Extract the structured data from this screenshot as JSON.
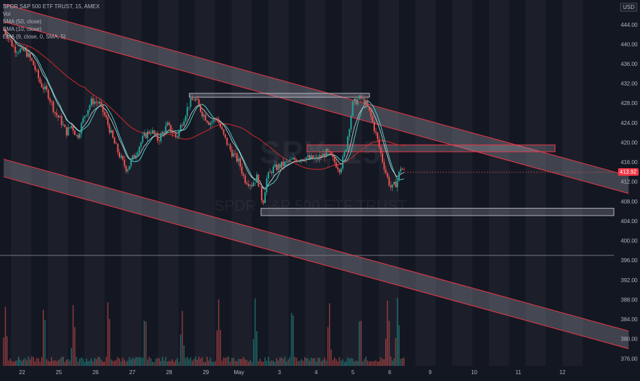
{
  "legend": {
    "title": "SPDR S&P 500 ETF TRUST, 15, AMEX",
    "vol": "Vol",
    "sma50": "SMA (50, close)",
    "sma10": "SMA (10, close)",
    "ema": "EMA (9, close, 0, SMA, 5)"
  },
  "currency_button": "USD",
  "watermark": {
    "symbol": "SPY, 15",
    "name": "SPDR S&P 500 ETF TRUST"
  },
  "last_price": "413.92",
  "colors": {
    "background": "#131722",
    "up": "#26a69a",
    "down": "#ef5350",
    "sma50": "#c62828",
    "sma10": "#4dd0c8",
    "ema": "#e0e0e0",
    "channel_fill": "#787b86",
    "channel_line": "#f23645",
    "zone_line": "#b2b5be"
  },
  "chart_data": {
    "type": "candlestick",
    "y_axis": {
      "ticks": [
        376,
        380,
        384,
        388,
        392,
        396,
        400,
        404,
        408,
        412,
        416,
        420,
        424,
        428,
        432,
        436,
        440,
        444
      ],
      "ylim": [
        374.5,
        449
      ]
    },
    "x_axis": {
      "ticks": [
        {
          "label": "22",
          "t": 0.5
        },
        {
          "label": "25",
          "t": 1.5
        },
        {
          "label": "26",
          "t": 2.5
        },
        {
          "label": "27",
          "t": 3.5
        },
        {
          "label": "28",
          "t": 4.5
        },
        {
          "label": "29",
          "t": 5.5
        },
        {
          "label": "May",
          "t": 6.4
        },
        {
          "label": "3",
          "t": 7.5
        },
        {
          "label": "4",
          "t": 8.5
        },
        {
          "label": "5",
          "t": 9.5
        },
        {
          "label": "6",
          "t": 10.5
        },
        {
          "label": "9",
          "t": 11.6
        },
        {
          "label": "10",
          "t": 12.8
        },
        {
          "label": "11",
          "t": 14.0
        },
        {
          "label": "12",
          "t": 15.2
        }
      ],
      "xlim": [
        -0.1,
        16.6
      ]
    },
    "price_path": [
      [
        0.0,
        443.0
      ],
      [
        0.3,
        439.0
      ],
      [
        0.6,
        438.5
      ],
      [
        0.8,
        436.0
      ],
      [
        1.0,
        432.0
      ],
      [
        1.2,
        430.0
      ],
      [
        1.4,
        426.0
      ],
      [
        1.55,
        424.5
      ],
      [
        1.7,
        422.0
      ],
      [
        1.85,
        423.5
      ],
      [
        2.0,
        421.0
      ],
      [
        2.2,
        425.5
      ],
      [
        2.4,
        428.5
      ],
      [
        2.6,
        428.0
      ],
      [
        2.8,
        424.5
      ],
      [
        3.0,
        420.0
      ],
      [
        3.2,
        416.5
      ],
      [
        3.35,
        414.5
      ],
      [
        3.6,
        418.0
      ],
      [
        3.8,
        421.0
      ],
      [
        4.0,
        422.5
      ],
      [
        4.2,
        420.5
      ],
      [
        4.45,
        423.5
      ],
      [
        4.7,
        421.0
      ],
      [
        4.9,
        425.0
      ],
      [
        5.05,
        428.0
      ],
      [
        5.2,
        429.0
      ],
      [
        5.4,
        426.0
      ],
      [
        5.6,
        424.0
      ],
      [
        5.8,
        425.0
      ],
      [
        6.0,
        421.0
      ],
      [
        6.2,
        418.0
      ],
      [
        6.4,
        416.0
      ],
      [
        6.55,
        412.5
      ],
      [
        6.75,
        411.5
      ],
      [
        6.9,
        413.0
      ],
      [
        7.05,
        407.5
      ],
      [
        7.15,
        412.5
      ],
      [
        7.3,
        414.5
      ],
      [
        7.6,
        415.5
      ],
      [
        7.9,
        416.5
      ],
      [
        8.2,
        417.0
      ],
      [
        8.5,
        416.5
      ],
      [
        8.8,
        418.0
      ],
      [
        9.0,
        416.0
      ],
      [
        9.15,
        414.5
      ],
      [
        9.3,
        418.5
      ],
      [
        9.5,
        428.0
      ],
      [
        9.7,
        429.0
      ],
      [
        9.85,
        428.0
      ],
      [
        10.0,
        425.0
      ],
      [
        10.15,
        421.0
      ],
      [
        10.3,
        416.5
      ],
      [
        10.45,
        412.5
      ],
      [
        10.55,
        410.5
      ],
      [
        10.7,
        412.0
      ],
      [
        10.8,
        415.0
      ],
      [
        10.9,
        413.9
      ]
    ],
    "volume_spikes": [
      0.05,
      1.1,
      1.9,
      2.85,
      3.85,
      4.85,
      5.85,
      6.85,
      7.85,
      8.85,
      9.7,
      10.45,
      10.72
    ],
    "channels": [
      {
        "name": "upper channel",
        "p1": [
          0.0,
          448.2
        ],
        "p2": [
          17.0,
          413.2
        ],
        "width": 3.6
      },
      {
        "name": "lower channel",
        "p1": [
          0.0,
          416.6
        ],
        "p2": [
          17.0,
          381.6
        ],
        "width": 3.6
      }
    ],
    "zones": [
      {
        "name": "top resistance",
        "t1": 5.05,
        "t2": 9.95,
        "y_top": 430.0,
        "y_bot": 429.2,
        "stroke": "#b2b5be"
      },
      {
        "name": "mid resistance",
        "t1": 8.25,
        "t2": 15.0,
        "y_top": 419.5,
        "y_bot": 418.1,
        "stroke": "#f23645"
      },
      {
        "name": "support zone",
        "t1": 7.0,
        "t2": 16.6,
        "y_top": 406.6,
        "y_bot": 405.1,
        "stroke": "#b2b5be"
      }
    ],
    "horizontal_line": 397.0,
    "last_price": 413.92
  }
}
